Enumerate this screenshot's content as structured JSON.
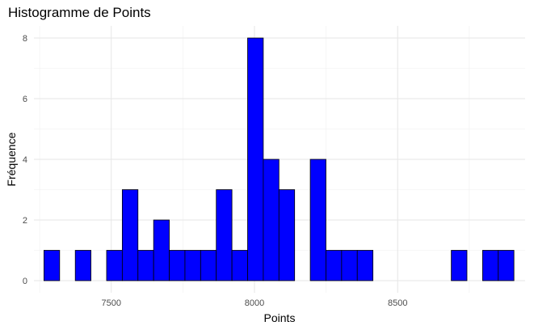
{
  "chart_data": {
    "type": "bar",
    "title": "Histogramme de Points",
    "xlabel": "Points",
    "ylabel": "Fréquence",
    "xlim": [
      7230,
      8945
    ],
    "ylim": [
      -0.4,
      8.4
    ],
    "x_ticks": [
      7500,
      8000,
      8500
    ],
    "y_ticks": [
      0,
      2,
      4,
      6,
      8
    ],
    "bin_width": 54.7,
    "bins_start": 7265,
    "counts": [
      1,
      0,
      1,
      0,
      1,
      3,
      1,
      2,
      1,
      1,
      1,
      3,
      1,
      8,
      4,
      3,
      0,
      4,
      1,
      1,
      1,
      0,
      0,
      0,
      0,
      0,
      1,
      0,
      1,
      1
    ],
    "bar_fill": "#0000FF",
    "bar_stroke": "#000000",
    "grid": true
  }
}
